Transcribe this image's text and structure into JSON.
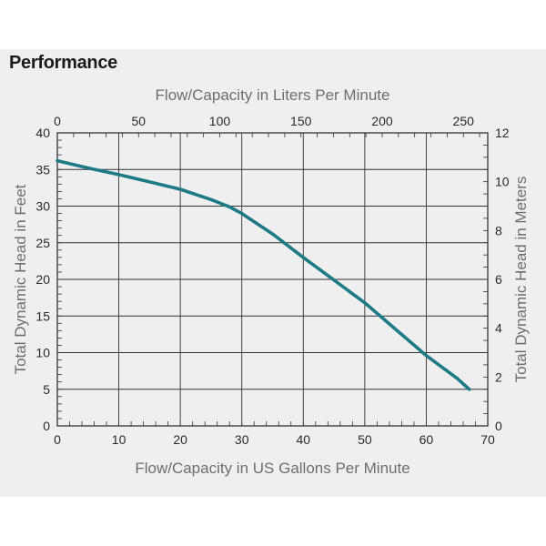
{
  "header": {
    "title": "Performance"
  },
  "chart_data": {
    "type": "line",
    "xlabel": "Flow/Capacity in US Gallons Per Minute",
    "ylabel": "Total Dynamic Head in Feet",
    "x2label": "Flow/Capacity in Liters Per Minute",
    "y2label": "Total Dynamic Head in Meters",
    "xlim": [
      0,
      70
    ],
    "ylim": [
      0,
      40
    ],
    "x2lim": [
      0,
      265
    ],
    "y2lim": [
      0,
      12
    ],
    "xticks": [
      0,
      10,
      20,
      30,
      40,
      50,
      60,
      70
    ],
    "yticks": [
      0,
      5,
      10,
      15,
      20,
      25,
      30,
      35,
      40
    ],
    "x2ticks": [
      0,
      50,
      100,
      150,
      200,
      250
    ],
    "y2ticks": [
      0,
      2,
      4,
      6,
      8,
      10,
      12
    ],
    "grid": true,
    "series": [
      {
        "x": [
          0,
          5,
          10,
          15,
          20,
          25,
          28,
          30,
          35,
          40,
          45,
          50,
          55,
          60,
          65,
          67
        ],
        "y": [
          36.2,
          35.2,
          34.3,
          33.3,
          32.3,
          30.9,
          29.9,
          29.0,
          26.2,
          23.0,
          19.9,
          16.8,
          13.2,
          9.6,
          6.5,
          5.0
        ]
      }
    ],
    "colors": {
      "line": "#1f7a86",
      "grid": "#333333",
      "axis_text": "#6e6e6e"
    }
  }
}
